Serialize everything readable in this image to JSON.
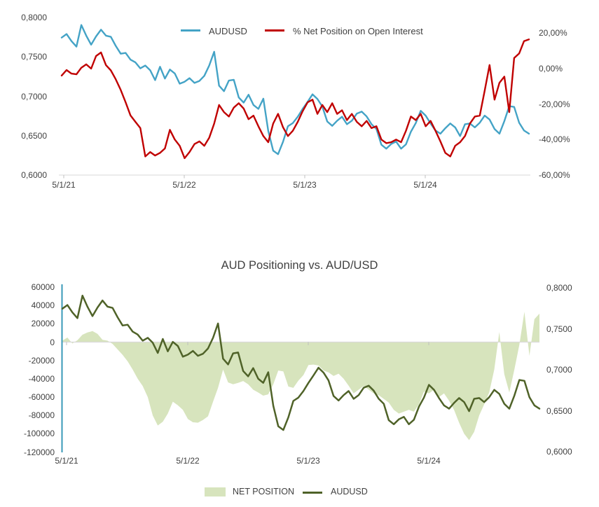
{
  "chart_data": [
    {
      "type": "line",
      "title": "",
      "legend_position": "top",
      "x_tick_labels": [
        "5/1/21",
        "5/1/22",
        "5/1/23",
        "5/1/24"
      ],
      "y_left": {
        "labels": [
          "0,8000",
          "0,7500",
          "0,7000",
          "0,6500",
          "0,6000"
        ],
        "values": [
          0.8,
          0.75,
          0.7,
          0.65,
          0.6
        ],
        "range": [
          0.6,
          0.8
        ]
      },
      "y_right": {
        "labels": [
          "20,00%",
          "0,00%",
          "-20,00%",
          "-40,00%",
          "-60,00%"
        ],
        "values": [
          20,
          0,
          -20,
          -40,
          -60
        ],
        "range": [
          -60,
          20
        ]
      },
      "grid": "off",
      "series": [
        {
          "name": "AUDUSD",
          "axis": "left",
          "color": "#44A3C6",
          "values": [
            0.7745,
            0.779,
            0.77,
            0.763,
            0.7905,
            0.777,
            0.7655,
            0.776,
            0.7845,
            0.777,
            0.7755,
            0.764,
            0.754,
            0.755,
            0.7465,
            0.743,
            0.7355,
            0.739,
            0.733,
            0.7205,
            0.7375,
            0.7225,
            0.734,
            0.729,
            0.716,
            0.7185,
            0.723,
            0.717,
            0.7195,
            0.726,
            0.739,
            0.7565,
            0.7135,
            0.7065,
            0.72,
            0.721,
            0.6985,
            0.692,
            0.702,
            0.689,
            0.684,
            0.697,
            0.656,
            0.631,
            0.6265,
            0.642,
            0.662,
            0.666,
            0.674,
            0.684,
            0.693,
            0.7025,
            0.6965,
            0.687,
            0.668,
            0.6625,
            0.669,
            0.674,
            0.6645,
            0.669,
            0.678,
            0.6805,
            0.6745,
            0.6645,
            0.6585,
            0.6385,
            0.6335,
            0.6395,
            0.6425,
            0.6335,
            0.639,
            0.655,
            0.666,
            0.6815,
            0.6755,
            0.6655,
            0.6565,
            0.6525,
            0.6595,
            0.6655,
            0.6605,
            0.6495,
            0.6645,
            0.6655,
            0.6605,
            0.6665,
            0.6755,
            0.6705,
            0.6585,
            0.6525,
            0.6685,
            0.6875,
            0.6865,
            0.6665,
            0.6565,
            0.6525
          ]
        },
        {
          "name": "% Net Position on Open Interest",
          "axis": "right",
          "color": "#C00000",
          "values": [
            -3.9,
            -0.8,
            -2.8,
            -3.2,
            0.5,
            2.4,
            0.0,
            7.1,
            9.1,
            2.0,
            -1.0,
            -6.0,
            -12.0,
            -19.0,
            -26.4,
            -30.0,
            -33.5,
            -49.5,
            -47.0,
            -49.0,
            -47.5,
            -45.0,
            -34.5,
            -40.0,
            -43.5,
            -50.5,
            -47.0,
            -42.5,
            -41.0,
            -43.5,
            -39.0,
            -31.0,
            -20.5,
            -24.5,
            -27.0,
            -22.0,
            -19.5,
            -22.5,
            -28.5,
            -26.5,
            -32.5,
            -38.0,
            -41.5,
            -31.0,
            -25.5,
            -33.0,
            -38.0,
            -35.0,
            -30.0,
            -24.0,
            -19.0,
            -17.5,
            -25.5,
            -20.5,
            -24.5,
            -19.5,
            -25.5,
            -23.5,
            -29.0,
            -25.5,
            -30.0,
            -32.5,
            -29.5,
            -33.5,
            -32.5,
            -40.0,
            -42.0,
            -41.5,
            -40.0,
            -41.5,
            -35.0,
            -27.0,
            -29.0,
            -25.5,
            -32.5,
            -29.5,
            -35.0,
            -41.0,
            -47.5,
            -49.5,
            -43.5,
            -41.5,
            -38.0,
            -31.0,
            -27.0,
            -26.5,
            -12.5,
            2.0,
            -17.5,
            -8.0,
            -4.5,
            -24.5,
            6.0,
            8.5,
            15.5,
            16.5
          ]
        }
      ]
    },
    {
      "type": "area+line",
      "title": "AUD Positioning vs. AUD/USD",
      "legend_position": "bottom",
      "x_tick_labels": [
        "5/1/21",
        "5/1/22",
        "5/1/23",
        "5/1/24"
      ],
      "y_left": {
        "labels": [
          "60000",
          "40000",
          "20000",
          "0",
          "-20000",
          "-40000",
          "-60000",
          "-80000",
          "-100000",
          "-120000"
        ],
        "values": [
          60000,
          40000,
          20000,
          0,
          -20000,
          -40000,
          -60000,
          -80000,
          -100000,
          -120000
        ],
        "range": [
          -120000,
          60000
        ]
      },
      "y_right": {
        "labels": [
          "0,8000",
          "0,7500",
          "0,7000",
          "0,6500",
          "0,6000"
        ],
        "values": [
          0.8,
          0.75,
          0.7,
          0.65,
          0.6
        ],
        "range": [
          0.6,
          0.8
        ]
      },
      "grid": "zero-line-only",
      "axis_line_color": "#3A9AB8",
      "series": [
        {
          "name": "NET POSITION",
          "type": "area",
          "axis": "left",
          "color": "#D7E4BD",
          "values": [
            1500,
            5000,
            -1500,
            2000,
            8000,
            10500,
            12000,
            9000,
            2500,
            1500,
            -2000,
            -8000,
            -14000,
            -21000,
            -30000,
            -40000,
            -48000,
            -60000,
            -80000,
            -91000,
            -87000,
            -78000,
            -65000,
            -69000,
            -74000,
            -84000,
            -87500,
            -88000,
            -85000,
            -81000,
            -65000,
            -50000,
            -30000,
            -44000,
            -46000,
            -44500,
            -42500,
            -46000,
            -52000,
            -55000,
            -58500,
            -57000,
            -46000,
            -31000,
            -32000,
            -48500,
            -50000,
            -42000,
            -36000,
            -25000,
            -24500,
            -25500,
            -31000,
            -33000,
            -37000,
            -34500,
            -40000,
            -47500,
            -56000,
            -52000,
            -48000,
            -52000,
            -56000,
            -58000,
            -62000,
            -66000,
            -74000,
            -78000,
            -76000,
            -74000,
            -76000,
            -68000,
            -54000,
            -56000,
            -52000,
            -60000,
            -56000,
            -64000,
            -74000,
            -88000,
            -100000,
            -107000,
            -98000,
            -80000,
            -68000,
            -55000,
            -30000,
            11000,
            -35000,
            -55000,
            -30000,
            -3000,
            33000,
            -15000,
            25000,
            31000
          ]
        },
        {
          "name": "AUDUSD",
          "type": "line",
          "axis": "right",
          "color": "#4F6228",
          "values": [
            0.7745,
            0.779,
            0.77,
            0.763,
            0.7905,
            0.777,
            0.7655,
            0.776,
            0.7845,
            0.777,
            0.7755,
            0.764,
            0.754,
            0.755,
            0.7465,
            0.743,
            0.7355,
            0.739,
            0.733,
            0.7205,
            0.7375,
            0.7225,
            0.734,
            0.729,
            0.716,
            0.7185,
            0.723,
            0.717,
            0.7195,
            0.726,
            0.739,
            0.7565,
            0.7135,
            0.7065,
            0.72,
            0.721,
            0.6985,
            0.692,
            0.702,
            0.689,
            0.684,
            0.697,
            0.656,
            0.631,
            0.6265,
            0.642,
            0.662,
            0.666,
            0.674,
            0.684,
            0.693,
            0.7025,
            0.6965,
            0.687,
            0.668,
            0.6625,
            0.669,
            0.674,
            0.6645,
            0.669,
            0.678,
            0.6805,
            0.6745,
            0.6645,
            0.6585,
            0.6385,
            0.6335,
            0.6395,
            0.6425,
            0.6335,
            0.639,
            0.655,
            0.666,
            0.6815,
            0.6755,
            0.6655,
            0.6565,
            0.6525,
            0.6595,
            0.6655,
            0.6605,
            0.6495,
            0.6645,
            0.6655,
            0.6605,
            0.6665,
            0.6755,
            0.6705,
            0.6585,
            0.6525,
            0.6685,
            0.6875,
            0.6865,
            0.6665,
            0.6565,
            0.6525
          ]
        }
      ]
    }
  ]
}
